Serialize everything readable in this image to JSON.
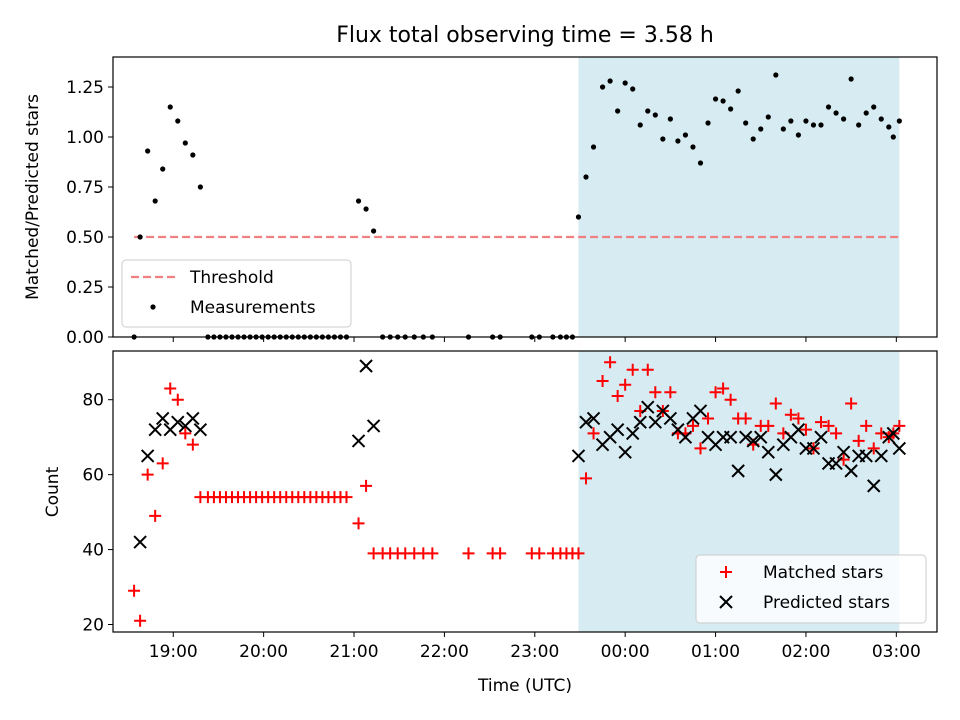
{
  "chart_data": [
    {
      "type": "scatter",
      "title": "Flux total observing time = 3.58 h",
      "ylabel": "Matched/Predicted stars",
      "xlabel": "",
      "xlim": [
        "18:20",
        "03:27"
      ],
      "ylim": [
        0,
        1.4
      ],
      "yticks": [
        0,
        0.25,
        0.5,
        0.75,
        1.0,
        1.25
      ],
      "ytick_labels": [
        "0.00",
        "0.25",
        "0.50",
        "0.75",
        "1.00",
        "1.25"
      ],
      "shaded_region": [
        "23:29",
        "03:02"
      ],
      "shaded_color": "#add8e6",
      "legend_position": "lower-left",
      "series": [
        {
          "name": "Threshold",
          "kind": "dashed-line",
          "color": "#f08080",
          "points": [
            [
              "18:34",
              0.5
            ],
            [
              "03:02",
              0.5
            ]
          ]
        },
        {
          "name": "Measurements",
          "kind": "dots",
          "color": "#000000",
          "points": [
            [
              "18:34",
              0.0
            ],
            [
              "18:38",
              0.5
            ],
            [
              "18:43",
              0.93
            ],
            [
              "18:48",
              0.68
            ],
            [
              "18:53",
              0.84
            ],
            [
              "18:58",
              1.15
            ],
            [
              "19:03",
              1.08
            ],
            [
              "19:08",
              0.97
            ],
            [
              "19:13",
              0.91
            ],
            [
              "19:18",
              0.75
            ],
            [
              "19:23",
              0.0
            ],
            [
              "19:27",
              0.0
            ],
            [
              "19:31",
              0.0
            ],
            [
              "19:35",
              0.0
            ],
            [
              "19:39",
              0.0
            ],
            [
              "19:43",
              0.0
            ],
            [
              "19:47",
              0.0
            ],
            [
              "19:51",
              0.0
            ],
            [
              "19:55",
              0.0
            ],
            [
              "19:59",
              0.0
            ],
            [
              "20:03",
              0.0
            ],
            [
              "20:07",
              0.0
            ],
            [
              "20:11",
              0.0
            ],
            [
              "20:15",
              0.0
            ],
            [
              "20:19",
              0.0
            ],
            [
              "20:23",
              0.0
            ],
            [
              "20:27",
              0.0
            ],
            [
              "20:31",
              0.0
            ],
            [
              "20:35",
              0.0
            ],
            [
              "20:39",
              0.0
            ],
            [
              "20:43",
              0.0
            ],
            [
              "20:47",
              0.0
            ],
            [
              "20:51",
              0.0
            ],
            [
              "20:55",
              0.0
            ],
            [
              "21:03",
              0.68
            ],
            [
              "21:08",
              0.64
            ],
            [
              "21:13",
              0.53
            ],
            [
              "21:19",
              0.0
            ],
            [
              "21:24",
              0.0
            ],
            [
              "21:29",
              0.0
            ],
            [
              "21:34",
              0.0
            ],
            [
              "21:40",
              0.0
            ],
            [
              "21:46",
              0.0
            ],
            [
              "21:52",
              0.0
            ],
            [
              "22:16",
              0.0
            ],
            [
              "22:32",
              0.0
            ],
            [
              "22:37",
              0.0
            ],
            [
              "22:58",
              0.0
            ],
            [
              "23:03",
              0.0
            ],
            [
              "23:12",
              0.0
            ],
            [
              "23:17",
              0.0
            ],
            [
              "23:21",
              0.0
            ],
            [
              "23:25",
              0.0
            ],
            [
              "23:29",
              0.6
            ],
            [
              "23:34",
              0.8
            ],
            [
              "23:39",
              0.95
            ],
            [
              "23:45",
              1.25
            ],
            [
              "23:50",
              1.28
            ],
            [
              "23:55",
              1.13
            ],
            [
              "00:00",
              1.27
            ],
            [
              "00:05",
              1.24
            ],
            [
              "00:10",
              1.06
            ],
            [
              "00:15",
              1.13
            ],
            [
              "00:20",
              1.11
            ],
            [
              "00:25",
              0.99
            ],
            [
              "00:30",
              1.09
            ],
            [
              "00:35",
              0.98
            ],
            [
              "00:40",
              1.01
            ],
            [
              "00:45",
              0.95
            ],
            [
              "00:50",
              0.87
            ],
            [
              "00:55",
              1.07
            ],
            [
              "01:00",
              1.19
            ],
            [
              "01:05",
              1.18
            ],
            [
              "01:10",
              1.14
            ],
            [
              "01:15",
              1.23
            ],
            [
              "01:20",
              1.07
            ],
            [
              "01:25",
              0.99
            ],
            [
              "01:30",
              1.04
            ],
            [
              "01:35",
              1.1
            ],
            [
              "01:40",
              1.31
            ],
            [
              "01:45",
              1.04
            ],
            [
              "01:50",
              1.08
            ],
            [
              "01:55",
              1.01
            ],
            [
              "02:00",
              1.08
            ],
            [
              "02:05",
              1.06
            ],
            [
              "02:10",
              1.06
            ],
            [
              "02:15",
              1.15
            ],
            [
              "02:20",
              1.12
            ],
            [
              "02:25",
              1.09
            ],
            [
              "02:30",
              1.29
            ],
            [
              "02:35",
              1.06
            ],
            [
              "02:40",
              1.12
            ],
            [
              "02:45",
              1.15
            ],
            [
              "02:50",
              1.09
            ],
            [
              "02:55",
              1.05
            ],
            [
              "02:58",
              1.0
            ],
            [
              "03:02",
              1.08
            ]
          ]
        }
      ]
    },
    {
      "type": "scatter",
      "title": "",
      "ylabel": "Count",
      "xlabel": "Time (UTC)",
      "xlim": [
        "18:20",
        "03:27"
      ],
      "ylim": [
        18,
        93
      ],
      "yticks": [
        20,
        40,
        60,
        80
      ],
      "ytick_labels": [
        "20",
        "40",
        "60",
        "80"
      ],
      "xticks": [
        "19:00",
        "20:00",
        "21:00",
        "22:00",
        "23:00",
        "00:00",
        "01:00",
        "02:00",
        "03:00"
      ],
      "shaded_region": [
        "23:29",
        "03:02"
      ],
      "shaded_color": "#add8e6",
      "legend_position": "lower-right",
      "series": [
        {
          "name": "Matched stars",
          "kind": "plus",
          "color": "#ff0000",
          "points": [
            [
              "18:34",
              29
            ],
            [
              "18:38",
              21
            ],
            [
              "18:43",
              60
            ],
            [
              "18:48",
              49
            ],
            [
              "18:53",
              63
            ],
            [
              "18:58",
              83
            ],
            [
              "19:03",
              80
            ],
            [
              "19:08",
              71
            ],
            [
              "19:13",
              68
            ],
            [
              "19:18",
              54
            ],
            [
              "19:23",
              54
            ],
            [
              "19:27",
              54
            ],
            [
              "19:31",
              54
            ],
            [
              "19:35",
              54
            ],
            [
              "19:39",
              54
            ],
            [
              "19:43",
              54
            ],
            [
              "19:47",
              54
            ],
            [
              "19:51",
              54
            ],
            [
              "19:55",
              54
            ],
            [
              "19:59",
              54
            ],
            [
              "20:03",
              54
            ],
            [
              "20:07",
              54
            ],
            [
              "20:11",
              54
            ],
            [
              "20:15",
              54
            ],
            [
              "20:19",
              54
            ],
            [
              "20:23",
              54
            ],
            [
              "20:27",
              54
            ],
            [
              "20:31",
              54
            ],
            [
              "20:35",
              54
            ],
            [
              "20:39",
              54
            ],
            [
              "20:43",
              54
            ],
            [
              "20:47",
              54
            ],
            [
              "20:51",
              54
            ],
            [
              "20:55",
              54
            ],
            [
              "21:03",
              47
            ],
            [
              "21:08",
              57
            ],
            [
              "21:13",
              39
            ],
            [
              "21:19",
              39
            ],
            [
              "21:24",
              39
            ],
            [
              "21:29",
              39
            ],
            [
              "21:34",
              39
            ],
            [
              "21:40",
              39
            ],
            [
              "21:46",
              39
            ],
            [
              "21:52",
              39
            ],
            [
              "22:16",
              39
            ],
            [
              "22:32",
              39
            ],
            [
              "22:37",
              39
            ],
            [
              "22:58",
              39
            ],
            [
              "23:03",
              39
            ],
            [
              "23:12",
              39
            ],
            [
              "23:17",
              39
            ],
            [
              "23:21",
              39
            ],
            [
              "23:25",
              39
            ],
            [
              "23:29",
              39
            ],
            [
              "23:34",
              59
            ],
            [
              "23:39",
              71
            ],
            [
              "23:45",
              85
            ],
            [
              "23:50",
              90
            ],
            [
              "23:55",
              81
            ],
            [
              "00:00",
              84
            ],
            [
              "00:05",
              88
            ],
            [
              "00:10",
              77
            ],
            [
              "00:15",
              88
            ],
            [
              "00:20",
              82
            ],
            [
              "00:25",
              77
            ],
            [
              "00:30",
              82
            ],
            [
              "00:35",
              71
            ],
            [
              "00:40",
              71
            ],
            [
              "00:45",
              73
            ],
            [
              "00:50",
              67
            ],
            [
              "00:55",
              75
            ],
            [
              "01:00",
              82
            ],
            [
              "01:05",
              83
            ],
            [
              "01:10",
              80
            ],
            [
              "01:15",
              75
            ],
            [
              "01:20",
              75
            ],
            [
              "01:25",
              68
            ],
            [
              "01:30",
              73
            ],
            [
              "01:35",
              73
            ],
            [
              "01:40",
              79
            ],
            [
              "01:45",
              71
            ],
            [
              "01:50",
              76
            ],
            [
              "01:55",
              75
            ],
            [
              "02:00",
              72
            ],
            [
              "02:05",
              67
            ],
            [
              "02:10",
              74
            ],
            [
              "02:15",
              73
            ],
            [
              "02:20",
              71
            ],
            [
              "02:25",
              64
            ],
            [
              "02:30",
              79
            ],
            [
              "02:35",
              69
            ],
            [
              "02:40",
              73
            ],
            [
              "02:45",
              67
            ],
            [
              "02:50",
              71
            ],
            [
              "02:55",
              70
            ],
            [
              "02:58",
              71
            ],
            [
              "03:02",
              73
            ]
          ]
        },
        {
          "name": "Predicted stars",
          "kind": "cross",
          "color": "#000000",
          "points": [
            [
              "18:38",
              42
            ],
            [
              "18:43",
              65
            ],
            [
              "18:48",
              72
            ],
            [
              "18:53",
              75
            ],
            [
              "18:58",
              72
            ],
            [
              "19:03",
              74
            ],
            [
              "19:08",
              73
            ],
            [
              "19:13",
              75
            ],
            [
              "19:18",
              72
            ],
            [
              "21:03",
              69
            ],
            [
              "21:08",
              89
            ],
            [
              "21:13",
              73
            ],
            [
              "23:29",
              65
            ],
            [
              "23:34",
              74
            ],
            [
              "23:39",
              75
            ],
            [
              "23:45",
              68
            ],
            [
              "23:50",
              70
            ],
            [
              "23:55",
              72
            ],
            [
              "00:00",
              66
            ],
            [
              "00:05",
              71
            ],
            [
              "00:10",
              74
            ],
            [
              "00:15",
              78
            ],
            [
              "00:20",
              74
            ],
            [
              "00:25",
              77
            ],
            [
              "00:30",
              75
            ],
            [
              "00:35",
              72
            ],
            [
              "00:40",
              70
            ],
            [
              "00:45",
              75
            ],
            [
              "00:50",
              77
            ],
            [
              "00:55",
              70
            ],
            [
              "01:00",
              68
            ],
            [
              "01:05",
              70
            ],
            [
              "01:10",
              70
            ],
            [
              "01:15",
              61
            ],
            [
              "01:20",
              70
            ],
            [
              "01:25",
              69
            ],
            [
              "01:30",
              70
            ],
            [
              "01:35",
              66
            ],
            [
              "01:40",
              60
            ],
            [
              "01:45",
              68
            ],
            [
              "01:50",
              70
            ],
            [
              "01:55",
              72
            ],
            [
              "02:00",
              67
            ],
            [
              "02:05",
              67
            ],
            [
              "02:10",
              70
            ],
            [
              "02:15",
              63
            ],
            [
              "02:20",
              63
            ],
            [
              "02:25",
              66
            ],
            [
              "02:30",
              61
            ],
            [
              "02:35",
              65
            ],
            [
              "02:40",
              65
            ],
            [
              "02:45",
              57
            ],
            [
              "02:50",
              65
            ],
            [
              "02:55",
              70
            ],
            [
              "02:58",
              71
            ],
            [
              "03:02",
              67
            ]
          ]
        }
      ]
    }
  ]
}
